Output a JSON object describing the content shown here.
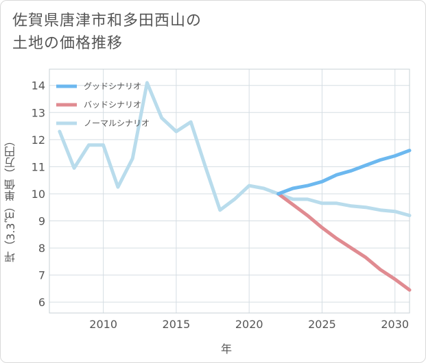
{
  "page": {
    "title_line1": "佐賀県唐津市和多田西山の",
    "title_line2": "土地の価格推移"
  },
  "chart_data": {
    "type": "line",
    "title": "佐賀県唐津市和多田西山の土地の価格推移",
    "xlabel": "年",
    "ylabel": "坪（3.3㎡）単価（万円）",
    "xlim": [
      2006.3,
      2031
    ],
    "ylim": [
      5.6,
      14.6
    ],
    "xticks": [
      2010,
      2015,
      2020,
      2025,
      2030
    ],
    "yticks": [
      6,
      7,
      8,
      9,
      10,
      11,
      12,
      13,
      14
    ],
    "grid": true,
    "legend_position": "top-left",
    "series": [
      {
        "name": "グッドシナリオ",
        "color": "#6cb8ef",
        "x": [
          2022,
          2023,
          2024,
          2025,
          2026,
          2027,
          2028,
          2029,
          2030,
          2031
        ],
        "y": [
          10.0,
          10.2,
          10.3,
          10.45,
          10.7,
          10.85,
          11.05,
          11.25,
          11.4,
          11.6
        ]
      },
      {
        "name": "バッドシナリオ",
        "color": "#e08b91",
        "x": [
          2022,
          2023,
          2024,
          2025,
          2026,
          2027,
          2028,
          2029,
          2030,
          2031
        ],
        "y": [
          10.0,
          9.6,
          9.2,
          8.75,
          8.35,
          8.0,
          7.65,
          7.2,
          6.85,
          6.45
        ]
      },
      {
        "name": "ノーマルシナリオ",
        "color": "#b9dcec",
        "x": [
          2007,
          2008,
          2009,
          2010,
          2011,
          2012,
          2013,
          2014,
          2015,
          2016,
          2017,
          2018,
          2019,
          2020,
          2021,
          2022,
          2023,
          2024,
          2025,
          2026,
          2027,
          2028,
          2029,
          2030,
          2031
        ],
        "y": [
          12.3,
          10.95,
          11.8,
          11.8,
          10.25,
          11.3,
          14.1,
          12.8,
          12.3,
          12.65,
          11.0,
          9.4,
          9.8,
          10.3,
          10.2,
          10.0,
          9.8,
          9.8,
          9.65,
          9.65,
          9.55,
          9.5,
          9.4,
          9.35,
          9.2
        ]
      }
    ]
  }
}
